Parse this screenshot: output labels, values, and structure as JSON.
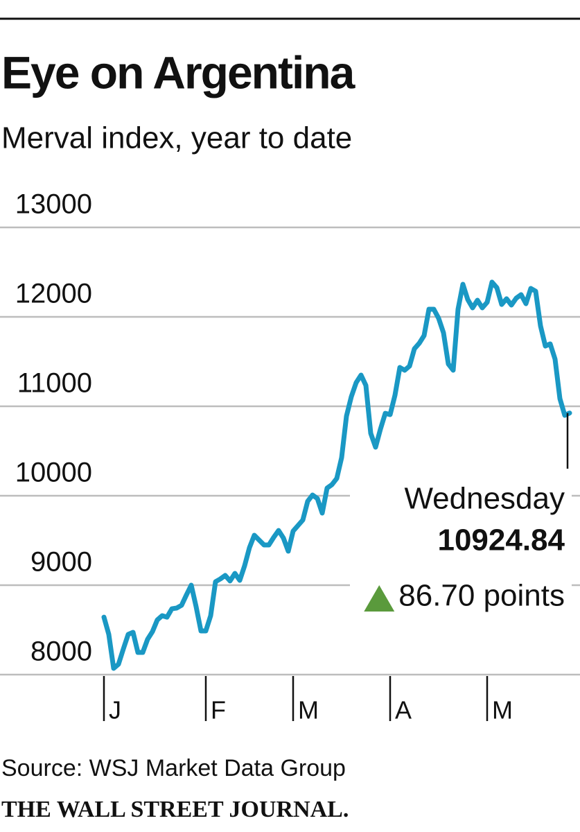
{
  "chart_data": {
    "type": "line",
    "title": "Eye on Argentina",
    "subtitle": "Merval index, year to date",
    "categories": [
      "J",
      null,
      null,
      null,
      null,
      null,
      null,
      null,
      null,
      null,
      null,
      null,
      null,
      null,
      null,
      null,
      null,
      null,
      null,
      null,
      null,
      "F",
      null,
      null,
      null,
      null,
      null,
      null,
      null,
      null,
      null,
      null,
      null,
      null,
      null,
      null,
      null,
      null,
      null,
      "M",
      null,
      null,
      null,
      null,
      null,
      null,
      null,
      null,
      null,
      null,
      null,
      null,
      null,
      null,
      null,
      null,
      null,
      null,
      null,
      "A",
      null,
      null,
      null,
      null,
      null,
      null,
      null,
      null,
      null,
      null,
      null,
      null,
      null,
      null,
      null,
      null,
      null,
      null,
      null,
      "M",
      null,
      null,
      null,
      null,
      null,
      null,
      null,
      null,
      null,
      null,
      null,
      null,
      null,
      null,
      null,
      null,
      null
    ],
    "values": [
      8643,
      8450,
      8070,
      8116,
      8287,
      8450,
      8473,
      8248,
      8248,
      8395,
      8481,
      8612,
      8659,
      8643,
      8736,
      8744,
      8775,
      8891,
      9000,
      8760,
      8488,
      8488,
      8659,
      9039,
      9070,
      9109,
      9047,
      9132,
      9054,
      9217,
      9419,
      9558,
      9504,
      9450,
      9450,
      9535,
      9612,
      9527,
      9380,
      9605,
      9667,
      9729,
      9938,
      10008,
      9969,
      9806,
      10085,
      10124,
      10194,
      10426,
      10891,
      11108,
      11264,
      11349,
      11233,
      10698,
      10543,
      10744,
      10922,
      10907,
      11124,
      11434,
      11403,
      11450,
      11643,
      11705,
      11791,
      12085,
      12085,
      11984,
      11822,
      11473,
      11403,
      12085,
      12364,
      12194,
      12101,
      12186,
      12101,
      12163,
      12388,
      12326,
      12139,
      12202,
      12132,
      12209,
      12248,
      12147,
      12318,
      12287,
      11899,
      11674,
      11698,
      11527,
      11085,
      10899,
      10924.84
    ],
    "color": "#1a98c4",
    "ylim": [
      8000,
      13000
    ],
    "yticks": [
      8000,
      9000,
      10000,
      11000,
      12000,
      13000
    ],
    "grid": true,
    "annotation": {
      "label": "Wednesday",
      "change": 86.7,
      "change_label": "86.70 points"
    },
    "source": "Source: WSJ Market Data Group",
    "publisher": "THE WALL STREET JOURNAL."
  }
}
